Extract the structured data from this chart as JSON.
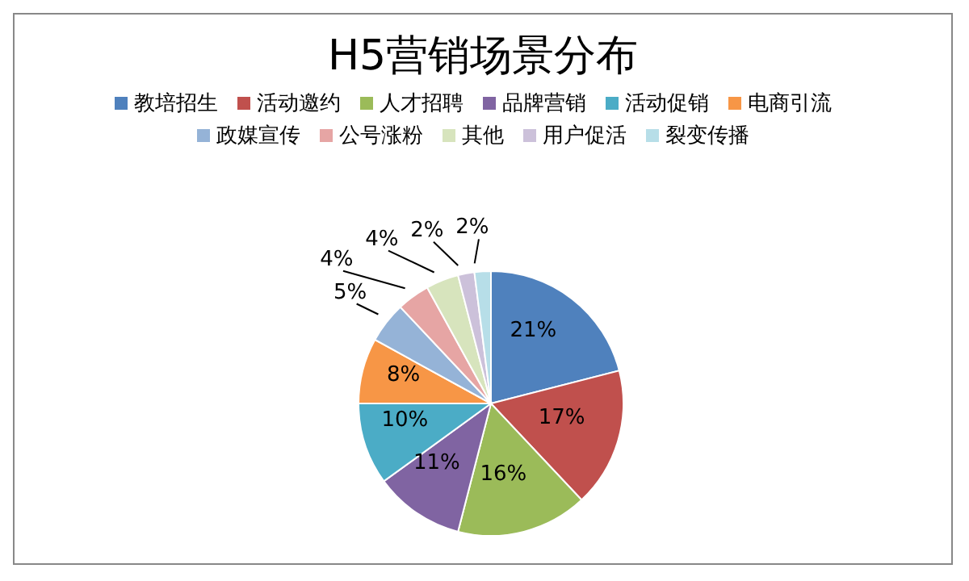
{
  "chart_data": {
    "type": "pie",
    "title": "H5营销场景分布",
    "categories": [
      "教培招生",
      "活动邀约",
      "人才招聘",
      "品牌营销",
      "活动促销",
      "电商引流",
      "政媒宣传",
      "公号涨粉",
      "其他",
      "用户促活",
      "裂变传播"
    ],
    "values": [
      21,
      17,
      16,
      11,
      10,
      8,
      5,
      4,
      4,
      2,
      2
    ],
    "value_labels": [
      "21%",
      "17%",
      "16%",
      "11%",
      "10%",
      "8%",
      "5%",
      "4%",
      "4%",
      "2%",
      "2%"
    ],
    "colors": [
      "#4f81bd",
      "#c0504d",
      "#9bbb59",
      "#8064a2",
      "#4bacc6",
      "#f79646",
      "#95b3d7",
      "#e6a5a4",
      "#d7e4bd",
      "#ccc1da",
      "#b7dee8"
    ],
    "legend": "top"
  }
}
